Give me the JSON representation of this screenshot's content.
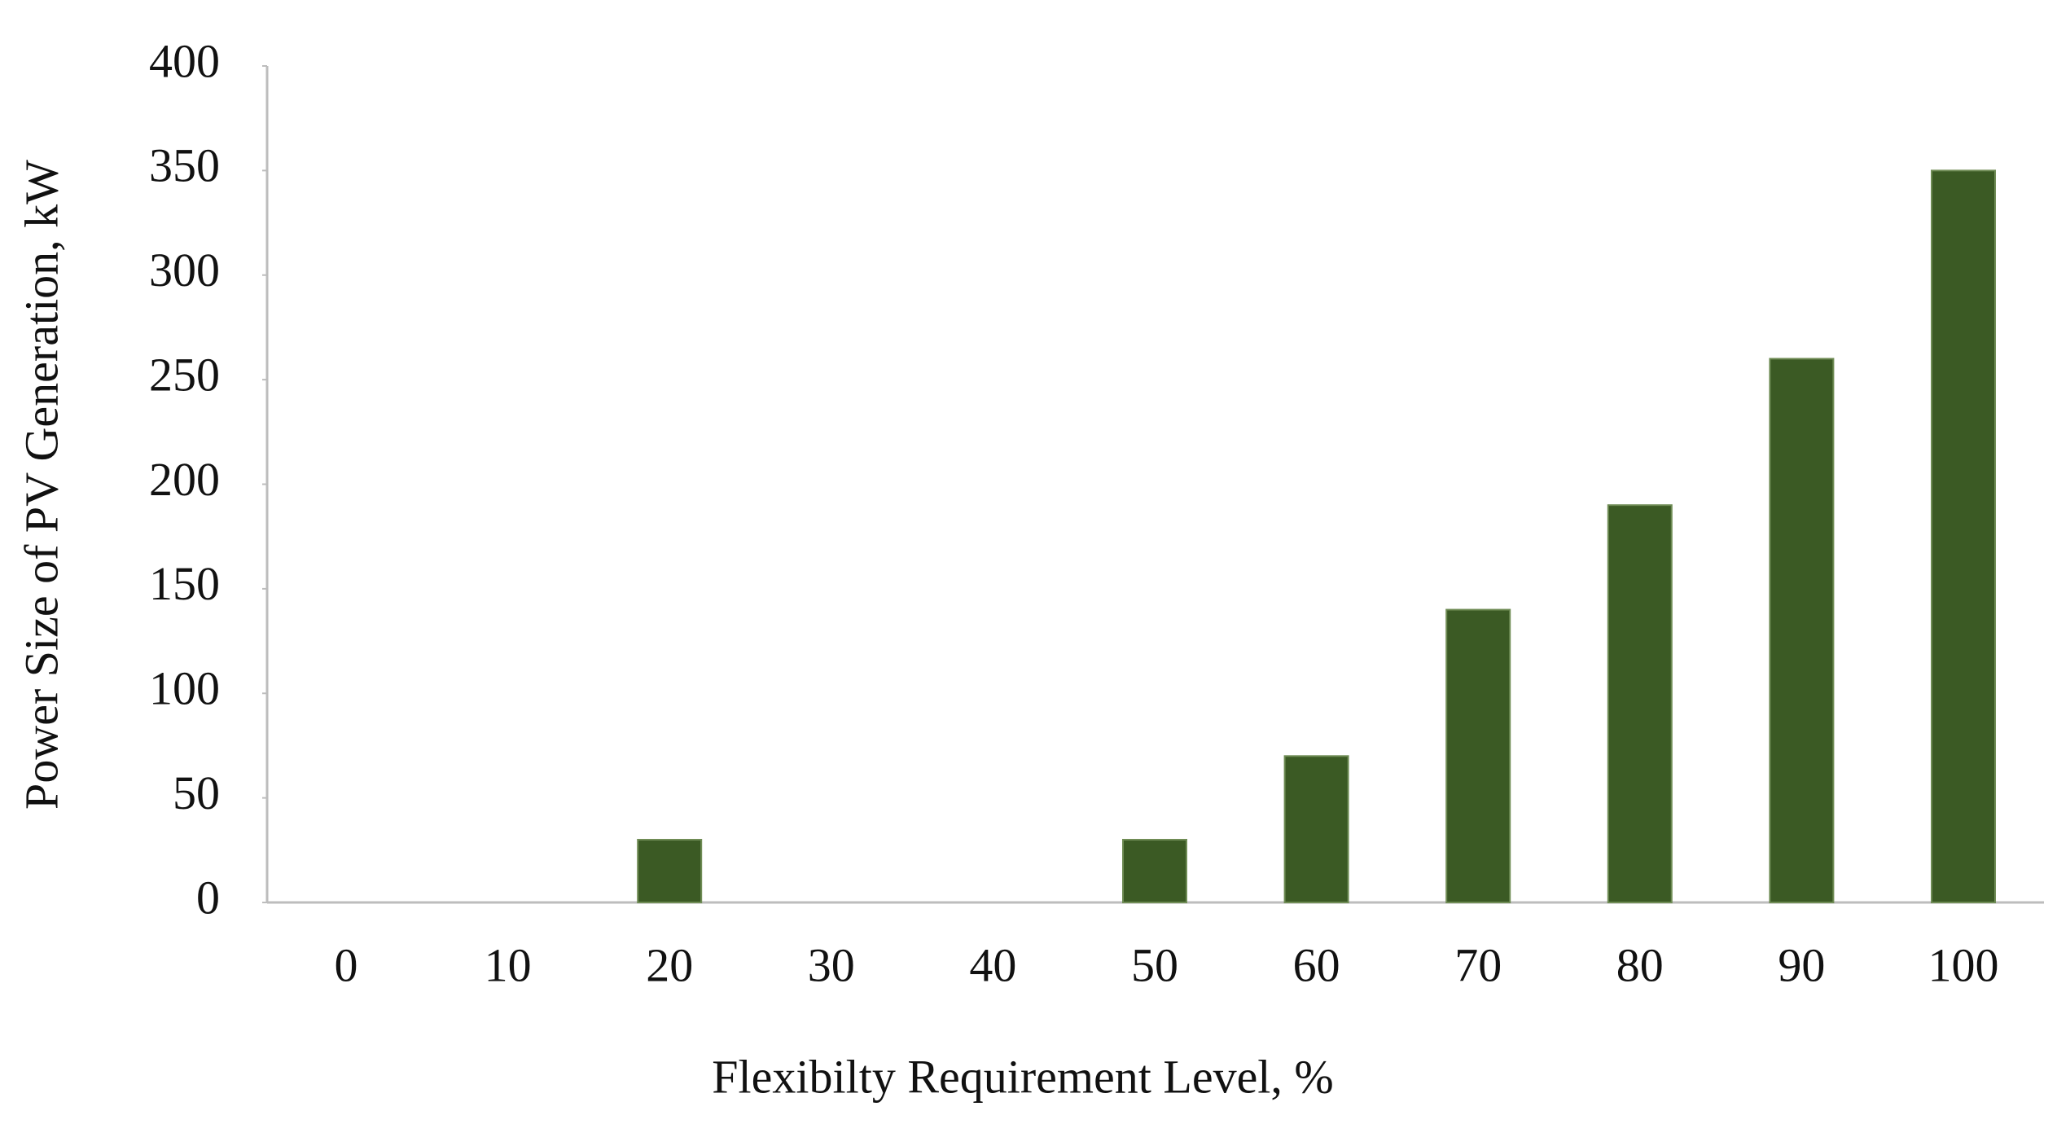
{
  "chart_data": {
    "type": "bar",
    "x_label": "Flexibilty Requirement Level, %",
    "y_label": "Power Size of PV Generation, kW",
    "categories": [
      "0",
      "10",
      "20",
      "30",
      "40",
      "50",
      "60",
      "70",
      "80",
      "90",
      "100"
    ],
    "values": [
      0,
      0,
      30,
      0,
      0,
      30,
      70,
      140,
      190,
      260,
      350
    ],
    "color": "#3b5a24",
    "ylim": [
      0,
      400
    ],
    "yticks": [
      0,
      50,
      100,
      150,
      200,
      250,
      300,
      350,
      400
    ],
    "grid": false
  }
}
